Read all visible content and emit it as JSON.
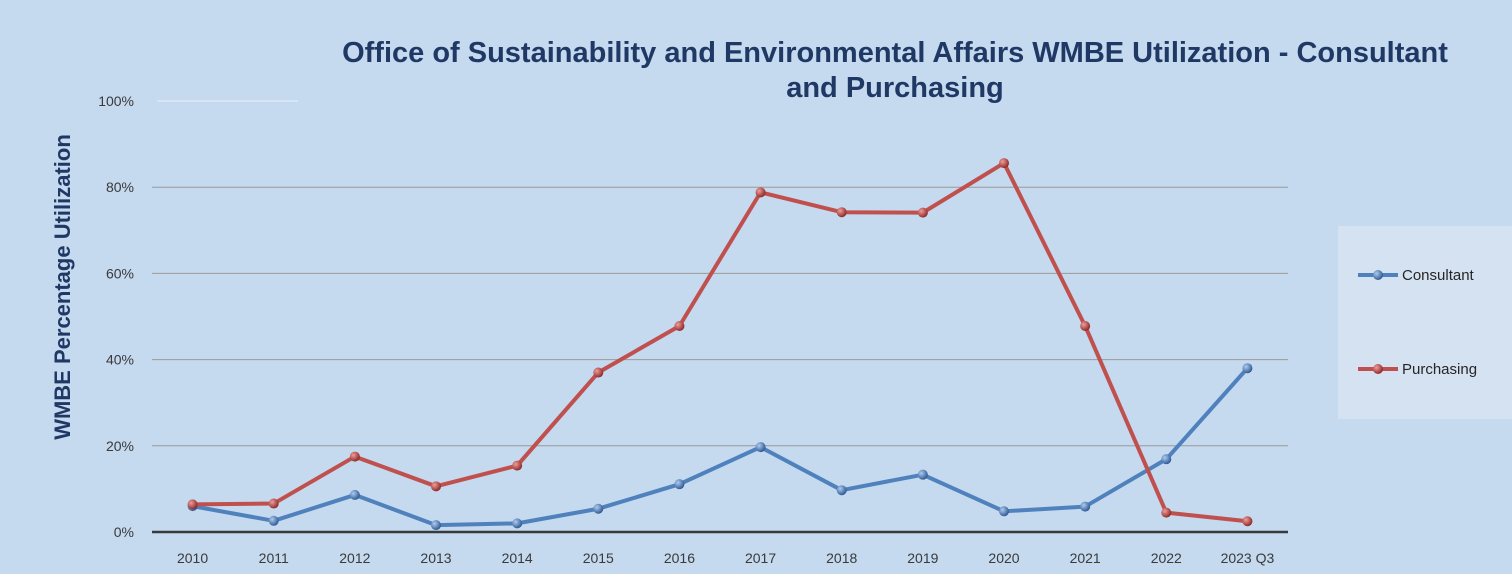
{
  "chart_data": {
    "type": "line",
    "title_lines": [
      "Office of Sustainability and Environmental Affairs WMBE Utilization - Consultant",
      "and Purchasing"
    ],
    "xlabel": "",
    "ylabel": "WMBE Percentage Utilization",
    "ylim": [
      0,
      100
    ],
    "y_ticks": [
      "0%",
      "20%",
      "40%",
      "60%",
      "80%",
      "100%"
    ],
    "y_tick_values": [
      0,
      20,
      40,
      60,
      80,
      100
    ],
    "categories": [
      "2010",
      "2011",
      "2012",
      "2013",
      "2014",
      "2015",
      "2016",
      "2017",
      "2018",
      "2019",
      "2020",
      "2021",
      "2022",
      "2023 Q3"
    ],
    "series": [
      {
        "name": "Consultant",
        "color": "#4f81bd",
        "values": [
          6,
          2.6,
          8.6,
          1.6,
          2,
          5.4,
          11.1,
          19.7,
          9.7,
          13.3,
          4.8,
          5.9,
          16.9,
          38
        ]
      },
      {
        "name": "Purchasing",
        "color": "#c0504d",
        "values": [
          6.4,
          6.6,
          17.5,
          10.6,
          15.4,
          37,
          47.8,
          78.8,
          74.2,
          74.1,
          85.6,
          47.8,
          4.5,
          2.5
        ]
      }
    ],
    "grid": true,
    "legend_position": "right",
    "markers": "sphere"
  }
}
